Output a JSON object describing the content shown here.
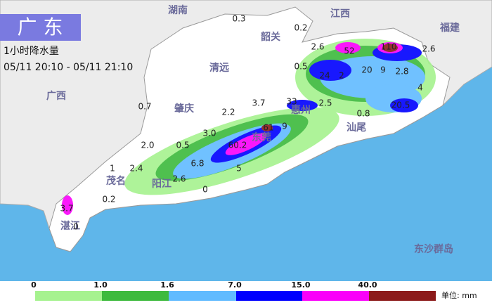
{
  "header": {
    "title": "广 东",
    "subtitle": "1小时降水量",
    "time": "05/11 20:10 - 05/11 21:10"
  },
  "places": [
    "湖南",
    "江西",
    "福建",
    "广西",
    "韶关",
    "清远",
    "肇庆",
    "阳江",
    "茂名",
    "汕尾",
    "湛江",
    "惠州",
    "东莞",
    "东沙群岛"
  ],
  "stations": [
    "0.3",
    "0.2",
    "2.6",
    "52",
    "110",
    "2.6",
    "0.5",
    "24",
    "2",
    "20",
    "9",
    "2.8",
    "4",
    "20.5",
    "0.7",
    "3.7",
    "33",
    "2.5",
    "0.8",
    "2.2",
    "61",
    "9",
    "3.0",
    "2.0",
    "0.5",
    "60.2",
    "6.8",
    "1",
    "2.4",
    "2.6",
    "5",
    "0",
    "0.2",
    "3.7",
    "0"
  ],
  "legend": {
    "labels": [
      "0",
      "1.0",
      "1.6",
      "7.0",
      "15.0",
      "40.0"
    ],
    "colors": [
      "#a6f28f",
      "#3dba3d",
      "#61bbff",
      "#0000fe",
      "#fa00fa",
      "#8c1a1a"
    ],
    "unit": "单位: mm"
  }
}
